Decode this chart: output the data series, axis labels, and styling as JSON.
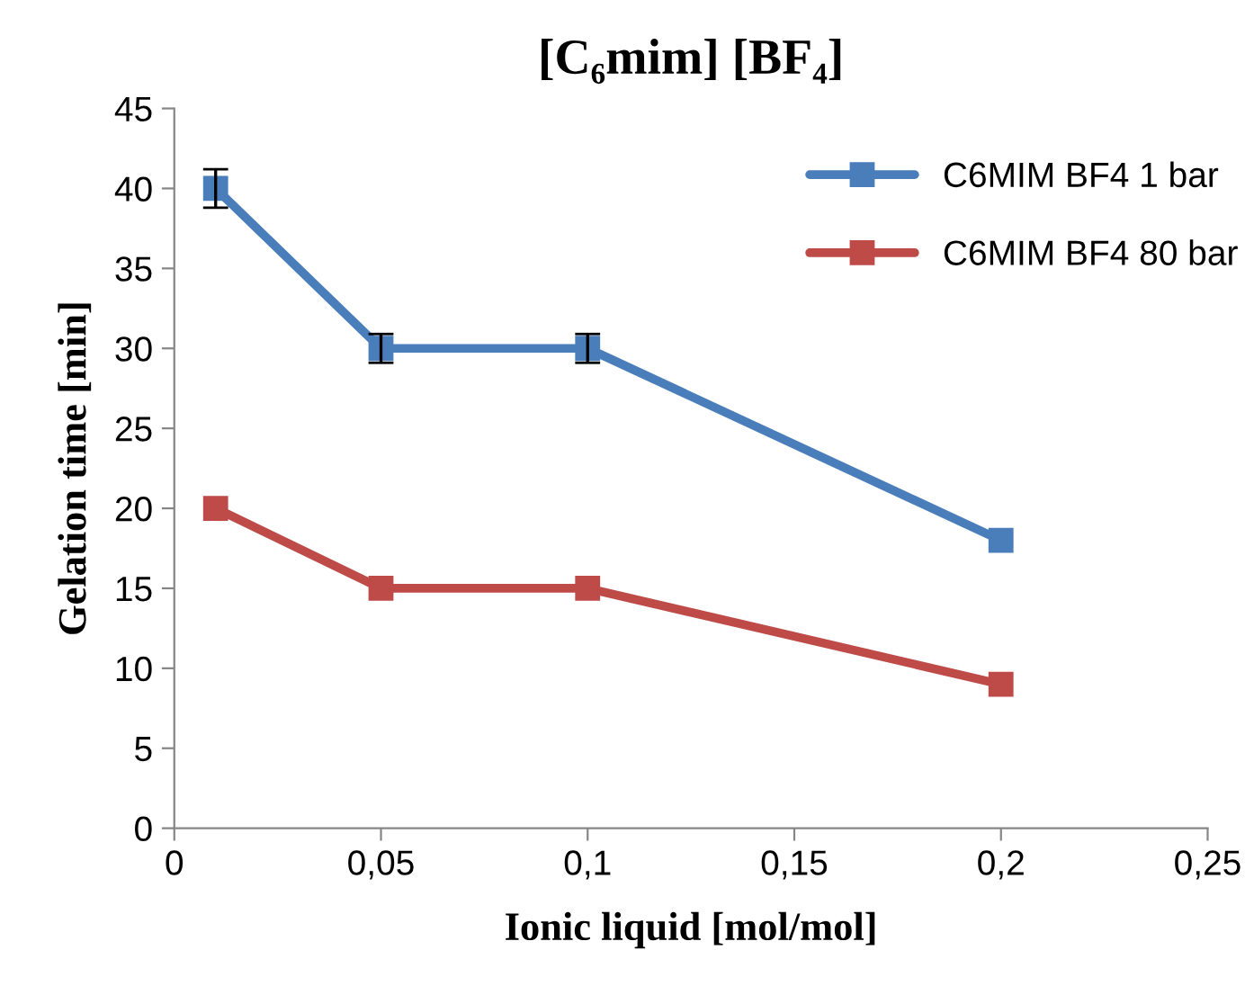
{
  "chart_data": {
    "type": "line",
    "title": "[C₆mim] [BF₄]",
    "xlabel": "Ionic liquid [mol/mol]",
    "ylabel": "Gelation time [min]",
    "x": [
      0.01,
      0.05,
      0.1,
      0.2
    ],
    "series": [
      {
        "name": "C6MIM BF4 1 bar",
        "color": "#4a7ebb",
        "values": [
          40,
          30,
          30,
          18
        ],
        "errors": [
          1.2,
          0.9,
          0.9,
          null
        ]
      },
      {
        "name": "C6MIM BF4 80 bar",
        "color": "#be4b48",
        "values": [
          20,
          15,
          15,
          9
        ]
      }
    ],
    "xlim": [
      0,
      0.25
    ],
    "xticks": [
      0,
      {
        "value": 0.05,
        "label": "0,05"
      },
      {
        "value": 0.1,
        "label": "0,1"
      },
      {
        "value": 0.15,
        "label": "0,15"
      },
      {
        "value": 0.2,
        "label": "0,2"
      },
      {
        "value": 0.25,
        "label": "0,25"
      }
    ],
    "ylim": [
      0,
      45
    ],
    "yticks": [
      0,
      5,
      10,
      15,
      20,
      25,
      30,
      35,
      40,
      45
    ],
    "grid": false,
    "legend": "top right",
    "marker": "square",
    "line_style": "solid"
  }
}
